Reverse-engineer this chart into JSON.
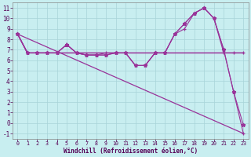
{
  "xlabel": "Windchill (Refroidissement éolien,°C)",
  "background_color": "#c8eef0",
  "grid_color": "#a8d4d8",
  "line_color": "#993399",
  "hours": [
    0,
    1,
    2,
    3,
    4,
    5,
    6,
    7,
    8,
    9,
    10,
    11,
    12,
    13,
    14,
    15,
    16,
    17,
    18,
    19,
    20,
    21,
    22,
    23
  ],
  "xlim": [
    -0.5,
    23.5
  ],
  "ylim": [
    -1.5,
    11.5
  ],
  "yticks": [
    -1,
    0,
    1,
    2,
    3,
    4,
    5,
    6,
    7,
    8,
    9,
    10,
    11
  ],
  "curve_A": [
    8.5,
    6.7,
    6.7,
    6.7,
    6.7,
    7.5,
    6.7,
    6.5,
    6.5,
    6.7,
    6.7,
    6.7,
    5.5,
    5.5,
    6.7,
    6.7,
    8.5,
    9.0,
    10.5,
    11.0,
    10.0,
    6.7,
    6.7,
    6.7
  ],
  "curve_B": [
    8.5,
    6.7,
    6.7,
    6.7,
    6.7,
    6.7,
    6.7,
    6.7,
    6.7,
    6.7,
    6.7,
    6.7,
    6.7,
    6.7,
    6.7,
    6.7,
    6.7,
    6.7,
    6.7,
    6.7,
    6.7,
    6.7,
    6.7,
    6.7
  ],
  "curve_C": [
    8.5,
    6.7,
    6.7,
    6.7,
    6.7,
    7.5,
    6.7,
    6.5,
    6.5,
    6.5,
    6.7,
    6.7,
    5.5,
    5.5,
    6.7,
    6.7,
    8.5,
    9.5,
    10.5,
    11.0,
    10.0,
    7.0,
    3.0,
    -1.0
  ],
  "curve_D": [
    8.5,
    6.7,
    6.7,
    6.7,
    6.7,
    7.5,
    6.7,
    6.5,
    6.5,
    6.5,
    6.7,
    6.7,
    5.5,
    5.5,
    6.7,
    6.7,
    8.5,
    9.5,
    10.5,
    11.0,
    10.0,
    7.0,
    3.0,
    -0.2
  ],
  "triangle_x": 5,
  "triangle_y": 7.5
}
